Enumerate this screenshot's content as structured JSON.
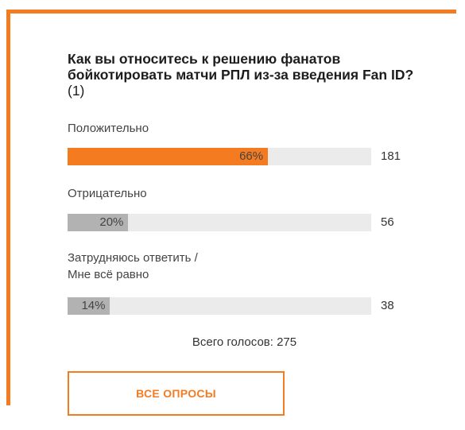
{
  "poll": {
    "question": "Как вы относитесь к решению фанатов бойкотировать матчи РПЛ из-за введения Fan ID?",
    "question_count": "(1)",
    "options": [
      {
        "label": "Положительно",
        "percent": 66,
        "percent_label": "66%",
        "votes": "181",
        "color": "#f47b20"
      },
      {
        "label": "Отрицательно",
        "percent": 20,
        "percent_label": "20%",
        "votes": "56",
        "color": "#b2b2b2"
      },
      {
        "label": "Затрудняюсь ответить /\nМне всё равно",
        "percent": 14,
        "percent_label": "14%",
        "votes": "38",
        "color": "#b2b2b2"
      }
    ],
    "total_votes": "Всего голосов: 275",
    "all_polls_button": "ВСЕ ОПРОСЫ"
  },
  "colors": {
    "accent": "#f47b20",
    "bar_track": "#ebebeb",
    "bar_secondary": "#b2b2b2"
  }
}
